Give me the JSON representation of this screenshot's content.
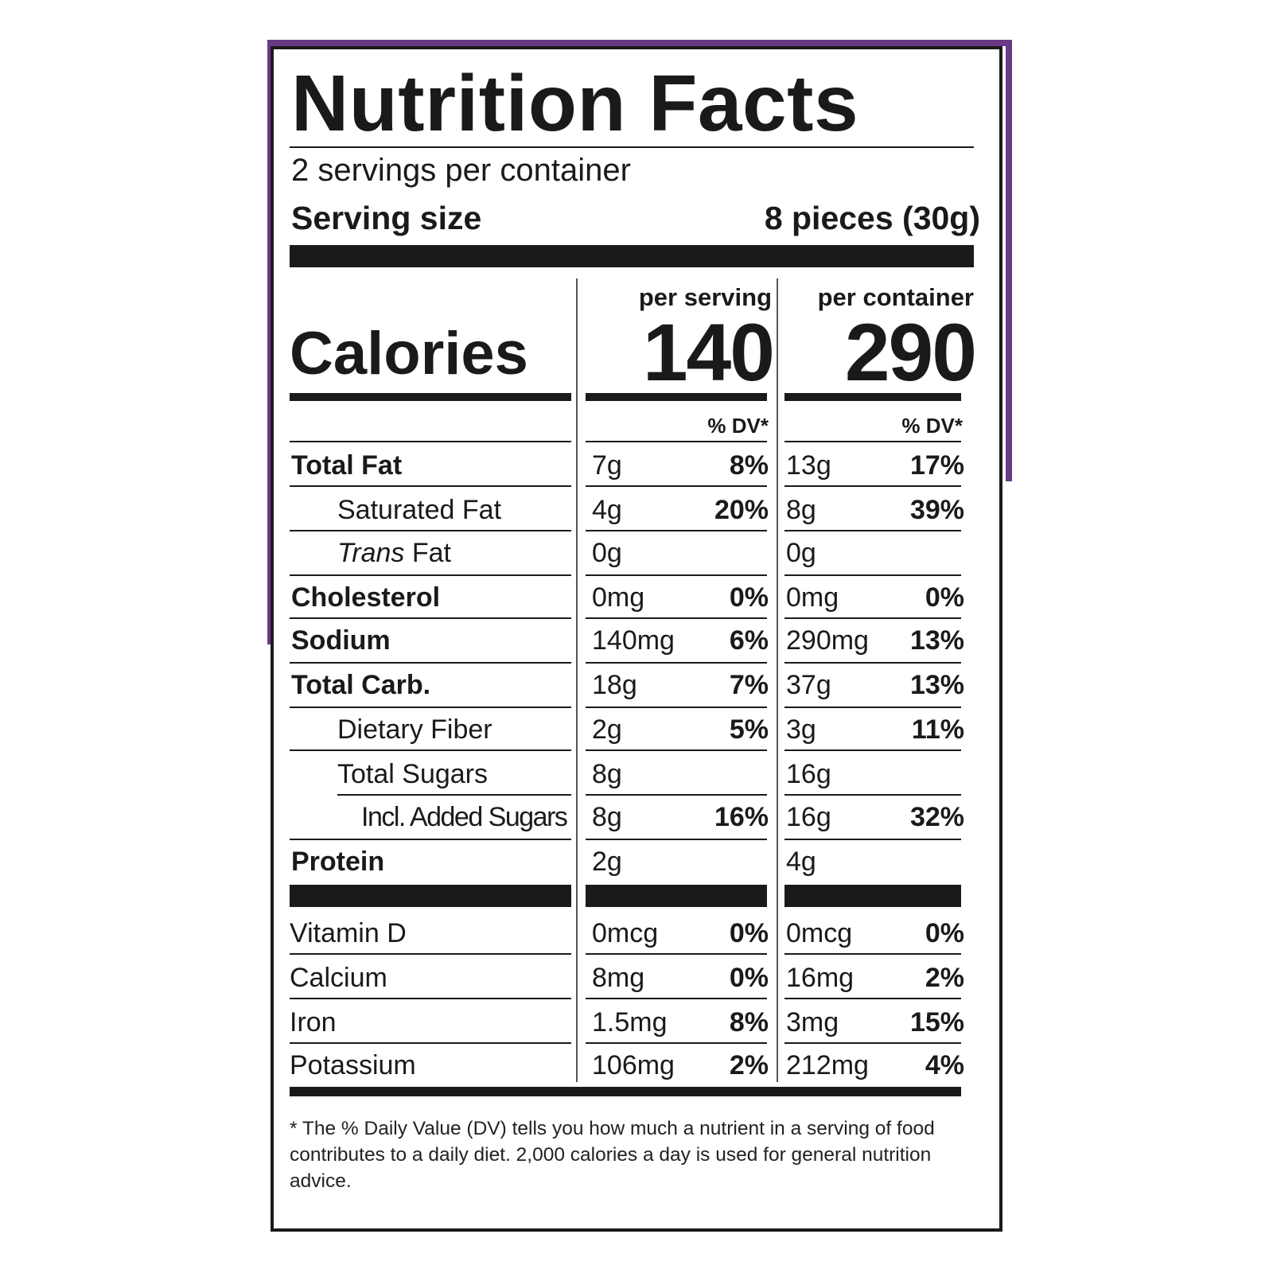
{
  "title": "Nutrition Facts",
  "servings_per_container": "2 servings per container",
  "serving_size": {
    "label": "Serving size",
    "value": "8 pieces (30g)"
  },
  "columns": {
    "per_serving": "per serving",
    "per_container": "per container"
  },
  "calories": {
    "label": "Calories",
    "per_serving": "140",
    "per_container": "290"
  },
  "dv_header": "% DV*",
  "nutrients": [
    {
      "name": "Total Fat",
      "serving_amount": "7g",
      "serving_dv": "8%",
      "container_amount": "13g",
      "container_dv": "17%"
    },
    {
      "name": "Saturated Fat",
      "serving_amount": "4g",
      "serving_dv": "20%",
      "container_amount": "8g",
      "container_dv": "39%"
    },
    {
      "name_italic": "Trans",
      "name": " Fat",
      "serving_amount": "0g",
      "serving_dv": "",
      "container_amount": "0g",
      "container_dv": ""
    },
    {
      "name": "Cholesterol",
      "serving_amount": "0mg",
      "serving_dv": "0%",
      "container_amount": "0mg",
      "container_dv": "0%"
    },
    {
      "name": "Sodium",
      "serving_amount": "140mg",
      "serving_dv": "6%",
      "container_amount": "290mg",
      "container_dv": "13%"
    },
    {
      "name": "Total Carb.",
      "serving_amount": "18g",
      "serving_dv": "7%",
      "container_amount": "37g",
      "container_dv": "13%"
    },
    {
      "name": "Dietary Fiber",
      "serving_amount": "2g",
      "serving_dv": "5%",
      "container_amount": "3g",
      "container_dv": "11%"
    },
    {
      "name": "Total Sugars",
      "serving_amount": "8g",
      "serving_dv": "",
      "container_amount": "16g",
      "container_dv": ""
    },
    {
      "name": "Incl. Added Sugars",
      "serving_amount": "8g",
      "serving_dv": "16%",
      "container_amount": "16g",
      "container_dv": "32%"
    },
    {
      "name": "Protein",
      "serving_amount": "2g",
      "serving_dv": "",
      "container_amount": "4g",
      "container_dv": ""
    }
  ],
  "vitamins": [
    {
      "name": "Vitamin D",
      "serving_amount": "0mcg",
      "serving_dv": "0%",
      "container_amount": "0mcg",
      "container_dv": "0%"
    },
    {
      "name": "Calcium",
      "serving_amount": "8mg",
      "serving_dv": "0%",
      "container_amount": "16mg",
      "container_dv": "2%"
    },
    {
      "name": "Iron",
      "serving_amount": "1.5mg",
      "serving_dv": "8%",
      "container_amount": "3mg",
      "container_dv": "15%"
    },
    {
      "name": "Potassium",
      "serving_amount": "106mg",
      "serving_dv": "2%",
      "container_amount": "212mg",
      "container_dv": "4%"
    }
  ],
  "footnote": "* The % Daily Value (DV) tells you how much a nutrient in a serving of food contributes to a daily diet. 2,000 calories a day is used for general nutrition advice.",
  "colors": {
    "accent": "#6b3a86",
    "ink": "#1a1a1a"
  }
}
